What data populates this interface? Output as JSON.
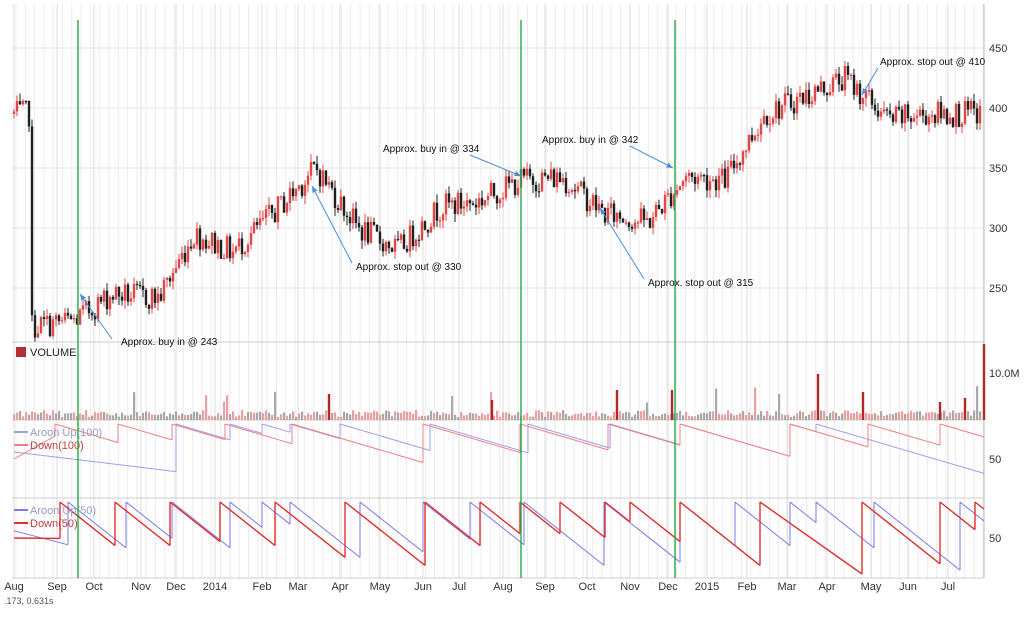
{
  "chart_data": {
    "type": "stock",
    "x_ticks": [
      "Aug",
      "Sep",
      "Oct",
      "Nov",
      "Dec",
      "2014",
      "Feb",
      "Mar",
      "Apr",
      "May",
      "Jun",
      "Jul",
      "Aug",
      "Sep",
      "Oct",
      "Nov",
      "Dec",
      "2015",
      "Feb",
      "Mar",
      "Apr",
      "May",
      "Jun",
      "Jul"
    ],
    "panels": [
      {
        "name": "price",
        "type": "candlestick",
        "y_ticks": [
          250,
          300,
          350,
          400,
          450
        ],
        "ylim": [
          205,
          480
        ],
        "approx_close_path": [
          {
            "x": "Aug 2013",
            "y": 218
          },
          {
            "x": "Sep 2013",
            "y": 223
          },
          {
            "x": "Oct 2013",
            "y": 245
          },
          {
            "x": "Nov 2013",
            "y": 242
          },
          {
            "x": "Dec 2013",
            "y": 295
          },
          {
            "x": "Jan 2014",
            "y": 280
          },
          {
            "x": "Feb 2014",
            "y": 318
          },
          {
            "x": "Mar 2014",
            "y": 350
          },
          {
            "x": "Apr 2014",
            "y": 300
          },
          {
            "x": "May 2014",
            "y": 282
          },
          {
            "x": "Jun 2014",
            "y": 318
          },
          {
            "x": "Jul 2014",
            "y": 322
          },
          {
            "x": "Aug 2014",
            "y": 340
          },
          {
            "x": "Sep 2014",
            "y": 342
          },
          {
            "x": "Oct 2014",
            "y": 312
          },
          {
            "x": "Nov 2014",
            "y": 305
          },
          {
            "x": "Dec 2014",
            "y": 343
          },
          {
            "x": "Jan 2015",
            "y": 340
          },
          {
            "x": "Feb 2015",
            "y": 395
          },
          {
            "x": "Mar 2015",
            "y": 410
          },
          {
            "x": "Apr 2015",
            "y": 425
          },
          {
            "x": "May 2015",
            "y": 390
          },
          {
            "x": "Jun 2015",
            "y": 395
          },
          {
            "x": "Jul 2015",
            "y": 395
          }
        ],
        "annotations": [
          {
            "text": "Approx. buy in @ 243"
          },
          {
            "text": "Approx. stop out @ 330"
          },
          {
            "text": "Approx. buy in @ 334"
          },
          {
            "text": "Approx. buy in @ 342"
          },
          {
            "text": "Approx. stop out @ 315"
          },
          {
            "text": "Approx. stop out @ 410"
          }
        ]
      },
      {
        "name": "volume",
        "type": "bar",
        "legend": "VOLUME",
        "y_ticks": [
          "10.0M"
        ]
      },
      {
        "name": "aroon100",
        "type": "line",
        "y_ticks": [
          50
        ],
        "series": [
          {
            "name": "Aroon Up(100)",
            "color": "#9e9ef0"
          },
          {
            "name": "Down(100)",
            "color": "#f08080"
          }
        ]
      },
      {
        "name": "aroon50",
        "type": "line",
        "y_ticks": [
          50
        ],
        "series": [
          {
            "name": "Aroon Up(50)",
            "color": "#7a7ae8"
          },
          {
            "name": "Down(50)",
            "color": "#e03030"
          }
        ]
      }
    ],
    "signal_lines": [
      "Sep 2013",
      "Aug 2014",
      "Dec 2014"
    ],
    "colors": {
      "up": "#e04848",
      "down": "#202020",
      "signal": "#22aa44",
      "annotation_arrow": "#4a90d9"
    }
  },
  "status": ".173, 0.631s"
}
